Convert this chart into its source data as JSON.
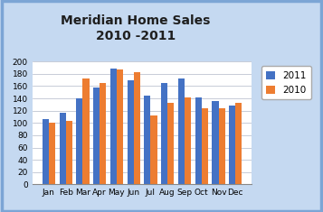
{
  "title": "Meridian Home Sales\n2010 -2011",
  "months": [
    "Jan",
    "Feb",
    "Mar",
    "Apr",
    "May",
    "Jun",
    "Jul",
    "Aug",
    "Sep",
    "Oct",
    "Nov",
    "Dec"
  ],
  "values_2011": [
    106,
    116,
    140,
    157,
    188,
    170,
    145,
    165,
    173,
    142,
    136,
    128
  ],
  "values_2010": [
    100,
    103,
    173,
    165,
    187,
    183,
    112,
    132,
    142,
    124,
    124,
    133
  ],
  "color_2011": "#4472C4",
  "color_2010": "#ED7D31",
  "ylim": [
    0,
    200
  ],
  "yticks": [
    0,
    20,
    40,
    60,
    80,
    100,
    120,
    140,
    160,
    180,
    200
  ],
  "legend_labels": [
    "2011",
    "2010"
  ],
  "background_color": "#C5D9F1",
  "plot_bg_color": "#FFFFFF",
  "title_fontsize": 10,
  "tick_fontsize": 6.5,
  "legend_fontsize": 7.5
}
